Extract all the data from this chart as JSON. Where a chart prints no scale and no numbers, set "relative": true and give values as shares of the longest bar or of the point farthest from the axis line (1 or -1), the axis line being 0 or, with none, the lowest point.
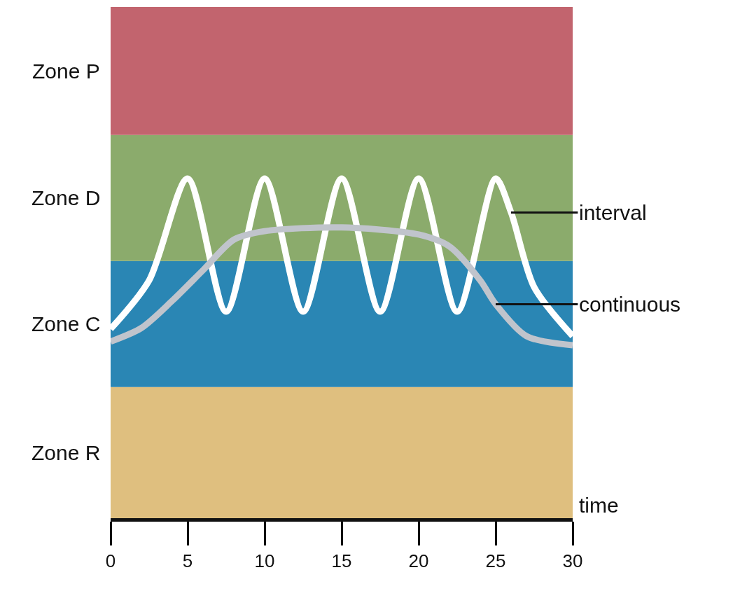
{
  "chart_data": {
    "type": "line",
    "relative": true,
    "xlabel": "time",
    "xlim": [
      0,
      30
    ],
    "xticks": [
      0,
      5,
      10,
      15,
      20,
      25,
      30
    ],
    "grid": false,
    "legend": false,
    "bands": [
      {
        "axis": "y",
        "from": 0,
        "to": 0.386,
        "label": "Zone R",
        "color": "#dfbf7f"
      },
      {
        "axis": "y",
        "from": 0.386,
        "to": 0.757,
        "label": "Zone C",
        "color": "#2a86b4"
      },
      {
        "axis": "y",
        "from": 0.757,
        "to": 1.128,
        "label": "Zone D",
        "color": "#8bab6c"
      },
      {
        "axis": "y",
        "from": 1.128,
        "to": 1.505,
        "label": "Zone P",
        "color": "#c2646e"
      }
    ],
    "series": [
      {
        "name": "interval",
        "color": "#ffffff",
        "x": [
          0,
          2.5,
          5,
          7.5,
          10,
          12.5,
          15,
          17.5,
          20,
          22.5,
          25,
          26,
          27.5,
          30
        ],
        "values": [
          0.557,
          0.7,
          1,
          0.608,
          1,
          0.608,
          1,
          0.608,
          1,
          0.608,
          1,
          0.9,
          0.68,
          0.536
        ]
      },
      {
        "name": "continuous",
        "color": "#c0c4cc",
        "x": [
          0,
          2,
          4,
          6,
          8,
          10,
          15,
          20,
          22,
          24,
          25,
          27,
          30
        ],
        "values": [
          0.52,
          0.56,
          0.64,
          0.73,
          0.82,
          0.845,
          0.856,
          0.835,
          0.8,
          0.7,
          0.63,
          0.536,
          0.509
        ]
      }
    ]
  }
}
